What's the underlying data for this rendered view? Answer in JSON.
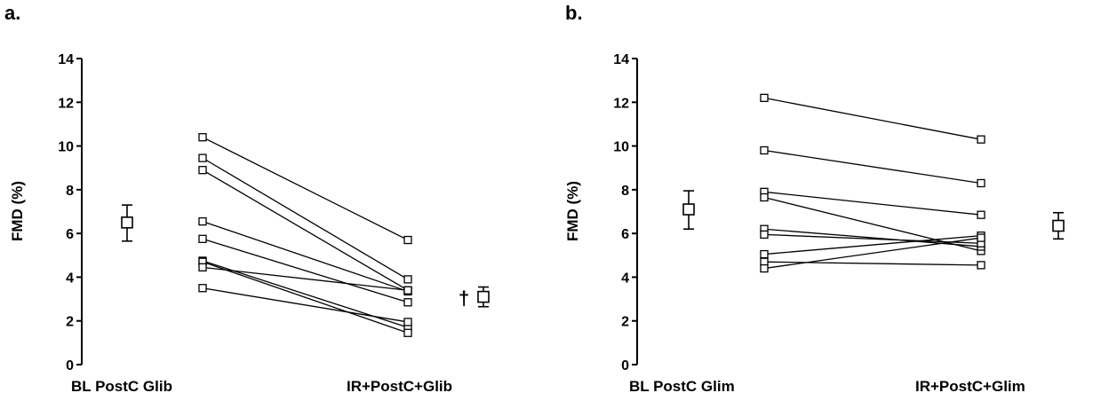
{
  "chart_data": [
    {
      "type": "line",
      "panel_label": "a.",
      "ylabel": "FMD  (%)",
      "ylim": [
        0,
        14
      ],
      "yticks": [
        0,
        2,
        4,
        6,
        8,
        10,
        12,
        14
      ],
      "categories": [
        "BL PostC Glib",
        "IR+PostC+Glib"
      ],
      "summary": {
        "baseline": {
          "mean": 6.5,
          "lower": 5.65,
          "upper": 7.3
        },
        "followup": {
          "mean": 3.1,
          "lower": 2.65,
          "upper": 3.55,
          "annotation": "†"
        }
      },
      "pairs": [
        [
          10.4,
          5.7
        ],
        [
          9.45,
          3.9
        ],
        [
          8.9,
          3.4
        ],
        [
          6.55,
          3.35
        ],
        [
          5.75,
          2.85
        ],
        [
          4.75,
          1.7
        ],
        [
          4.7,
          1.45
        ],
        [
          4.45,
          3.4
        ],
        [
          3.5,
          1.95
        ]
      ]
    },
    {
      "type": "line",
      "panel_label": "b.",
      "ylabel": "FMD  (%)",
      "ylim": [
        0,
        14
      ],
      "yticks": [
        0,
        2,
        4,
        6,
        8,
        10,
        12,
        14
      ],
      "categories": [
        "BL PostC Glim",
        "IR+PostC+Glim"
      ],
      "summary": {
        "baseline": {
          "mean": 7.1,
          "lower": 6.2,
          "upper": 7.95
        },
        "followup": {
          "mean": 6.35,
          "lower": 5.75,
          "upper": 6.95,
          "annotation": ""
        }
      },
      "pairs": [
        [
          12.2,
          10.3
        ],
        [
          9.8,
          8.3
        ],
        [
          7.9,
          6.85
        ],
        [
          7.65,
          5.2
        ],
        [
          6.2,
          5.4
        ],
        [
          5.95,
          5.55
        ],
        [
          5.05,
          5.9
        ],
        [
          4.7,
          4.55
        ],
        [
          4.4,
          5.8
        ]
      ]
    }
  ]
}
